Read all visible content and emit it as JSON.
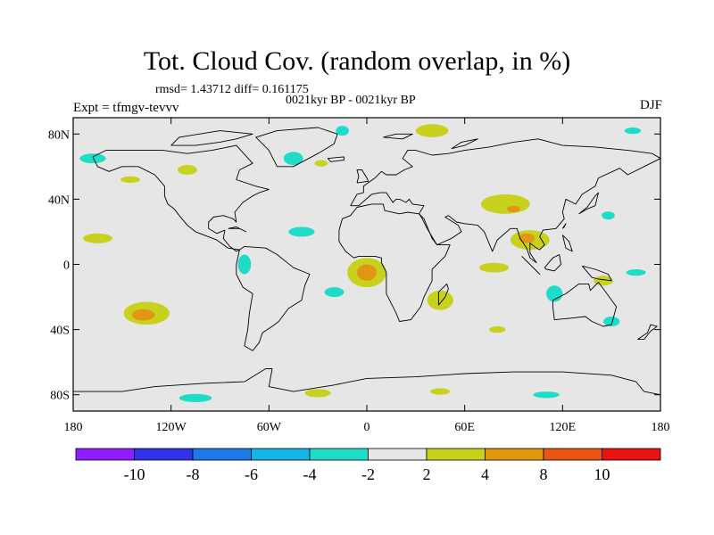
{
  "header": {
    "title": "Tot. Cloud Cov. (random overlap, in %)",
    "stats": "rmsd= 1.43712 diff= 0.161175",
    "period": "0021kyr BP - 0021kyr BP",
    "experiment": "Expt = tfmgv-tevvv",
    "season": "DJF"
  },
  "map": {
    "lon_range": [
      -180,
      180
    ],
    "lat_range": [
      -90,
      90
    ],
    "lat_ticks": [
      {
        "value": 80,
        "label": "80N"
      },
      {
        "value": 40,
        "label": "40N"
      },
      {
        "value": 0,
        "label": "0"
      },
      {
        "value": -40,
        "label": "40S"
      },
      {
        "value": -80,
        "label": "80S"
      }
    ],
    "lon_ticks": [
      {
        "value": -180,
        "label": "180"
      },
      {
        "value": -120,
        "label": "120W"
      },
      {
        "value": -60,
        "label": "60W"
      },
      {
        "value": 0,
        "label": "0"
      },
      {
        "value": 60,
        "label": "60E"
      },
      {
        "value": 120,
        "label": "120E"
      },
      {
        "value": 180,
        "label": "180"
      }
    ],
    "background_color": "#e6e6e6"
  },
  "colorbar": {
    "levels": [
      "-10",
      "-8",
      "-6",
      "-4",
      "-2",
      "2",
      "4",
      "8",
      "10"
    ],
    "colors": [
      "#8c1eff",
      "#3232e6",
      "#1e78e6",
      "#19b4e6",
      "#1edcc8",
      "#e6e6e6",
      "#c8d21e",
      "#e19614",
      "#e65514",
      "#e61414"
    ]
  },
  "field_patches": [
    {
      "lon": -135,
      "lat": -30,
      "rx": 14,
      "ry": 7,
      "color": "#c8d21e"
    },
    {
      "lon": -137,
      "lat": -31,
      "rx": 7,
      "ry": 3.5,
      "color": "#e19614"
    },
    {
      "lon": 0,
      "lat": -5,
      "rx": 12,
      "ry": 9,
      "color": "#c8d21e"
    },
    {
      "lon": 0,
      "lat": -5,
      "rx": 6,
      "ry": 5,
      "color": "#e19614"
    },
    {
      "lon": 85,
      "lat": 37,
      "rx": 15,
      "ry": 6,
      "color": "#c8d21e"
    },
    {
      "lon": 90,
      "lat": 34,
      "rx": 4,
      "ry": 2,
      "color": "#e19614"
    },
    {
      "lon": 100,
      "lat": 15,
      "rx": 12,
      "ry": 6,
      "color": "#c8d21e"
    },
    {
      "lon": 98,
      "lat": 16,
      "rx": 5,
      "ry": 3,
      "color": "#e19614"
    },
    {
      "lon": -165,
      "lat": 16,
      "rx": 9,
      "ry": 3,
      "color": "#c8d21e"
    },
    {
      "lon": -40,
      "lat": 20,
      "rx": 8,
      "ry": 3,
      "color": "#1edcc8"
    },
    {
      "lon": -75,
      "lat": 0,
      "rx": 4,
      "ry": 6,
      "color": "#1edcc8"
    },
    {
      "lon": -20,
      "lat": -17,
      "rx": 6,
      "ry": 3,
      "color": "#1edcc8"
    },
    {
      "lon": 45,
      "lat": -22,
      "rx": 8,
      "ry": 6,
      "color": "#c8d21e"
    },
    {
      "lon": 78,
      "lat": -2,
      "rx": 9,
      "ry": 3,
      "color": "#c8d21e"
    },
    {
      "lon": 115,
      "lat": -18,
      "rx": 5,
      "ry": 5,
      "color": "#1edcc8"
    },
    {
      "lon": 145,
      "lat": -10,
      "rx": 6,
      "ry": 3,
      "color": "#c8d21e"
    },
    {
      "lon": 165,
      "lat": -5,
      "rx": 6,
      "ry": 2,
      "color": "#1edcc8"
    },
    {
      "lon": 150,
      "lat": -35,
      "rx": 5,
      "ry": 3,
      "color": "#1edcc8"
    },
    {
      "lon": 40,
      "lat": 82,
      "rx": 10,
      "ry": 4,
      "color": "#c8d21e"
    },
    {
      "lon": -45,
      "lat": 65,
      "rx": 6,
      "ry": 4,
      "color": "#1edcc8"
    },
    {
      "lon": -168,
      "lat": 65,
      "rx": 8,
      "ry": 3,
      "color": "#1edcc8"
    },
    {
      "lon": -110,
      "lat": 58,
      "rx": 6,
      "ry": 3,
      "color": "#c8d21e"
    },
    {
      "lon": -15,
      "lat": 82,
      "rx": 4,
      "ry": 3,
      "color": "#1edcc8"
    },
    {
      "lon": -105,
      "lat": -82,
      "rx": 10,
      "ry": 2.5,
      "color": "#1edcc8"
    },
    {
      "lon": -30,
      "lat": -79,
      "rx": 8,
      "ry": 2.5,
      "color": "#c8d21e"
    },
    {
      "lon": 45,
      "lat": -78,
      "rx": 6,
      "ry": 2,
      "color": "#c8d21e"
    },
    {
      "lon": 110,
      "lat": -80,
      "rx": 8,
      "ry": 2,
      "color": "#1edcc8"
    },
    {
      "lon": 80,
      "lat": -40,
      "rx": 5,
      "ry": 2,
      "color": "#c8d21e"
    },
    {
      "lon": -145,
      "lat": 52,
      "rx": 6,
      "ry": 2,
      "color": "#c8d21e"
    },
    {
      "lon": 148,
      "lat": 30,
      "rx": 4,
      "ry": 2.5,
      "color": "#1edcc8"
    },
    {
      "lon": -28,
      "lat": 62,
      "rx": 4,
      "ry": 2,
      "color": "#c8d21e"
    },
    {
      "lon": 163,
      "lat": 82,
      "rx": 5,
      "ry": 2,
      "color": "#1edcc8"
    }
  ],
  "coastlines": [
    [
      [
        -168,
        66
      ],
      [
        -160,
        70
      ],
      [
        -140,
        70
      ],
      [
        -125,
        70
      ],
      [
        -110,
        68
      ],
      [
        -95,
        70
      ],
      [
        -80,
        73
      ],
      [
        -70,
        62
      ],
      [
        -78,
        58
      ],
      [
        -80,
        52
      ],
      [
        -68,
        48
      ],
      [
        -60,
        46
      ],
      [
        -66,
        44
      ],
      [
        -70,
        42
      ],
      [
        -76,
        38
      ],
      [
        -81,
        32
      ],
      [
        -80,
        26
      ],
      [
        -82,
        28
      ],
      [
        -88,
        30
      ],
      [
        -94,
        29
      ],
      [
        -97,
        26
      ],
      [
        -97,
        22
      ],
      [
        -92,
        19
      ],
      [
        -87,
        21
      ],
      [
        -88,
        16
      ],
      [
        -84,
        11
      ],
      [
        -80,
        8
      ],
      [
        -78,
        9
      ],
      [
        -85,
        10
      ],
      [
        -92,
        15
      ],
      [
        -105,
        20
      ],
      [
        -110,
        24
      ],
      [
        -115,
        30
      ],
      [
        -118,
        34
      ],
      [
        -122,
        37
      ],
      [
        -124,
        42
      ],
      [
        -124,
        48
      ],
      [
        -130,
        55
      ],
      [
        -140,
        60
      ],
      [
        -150,
        60
      ],
      [
        -158,
        57
      ],
      [
        -165,
        60
      ],
      [
        -168,
        66
      ]
    ],
    [
      [
        -55,
        60
      ],
      [
        -45,
        60
      ],
      [
        -30,
        68
      ],
      [
        -20,
        74
      ],
      [
        -18,
        80
      ],
      [
        -30,
        84
      ],
      [
        -55,
        82
      ],
      [
        -68,
        78
      ],
      [
        -60,
        70
      ],
      [
        -55,
        60
      ]
    ],
    [
      [
        -78,
        9
      ],
      [
        -75,
        11
      ],
      [
        -62,
        10
      ],
      [
        -55,
        6
      ],
      [
        -50,
        2
      ],
      [
        -45,
        -2
      ],
      [
        -35,
        -6
      ],
      [
        -38,
        -13
      ],
      [
        -40,
        -22
      ],
      [
        -48,
        -27
      ],
      [
        -54,
        -35
      ],
      [
        -58,
        -38
      ],
      [
        -64,
        -42
      ],
      [
        -66,
        -48
      ],
      [
        -70,
        -53
      ],
      [
        -75,
        -50
      ],
      [
        -73,
        -40
      ],
      [
        -72,
        -30
      ],
      [
        -70,
        -18
      ],
      [
        -76,
        -14
      ],
      [
        -80,
        -6
      ],
      [
        -80,
        0
      ],
      [
        -78,
        9
      ]
    ],
    [
      [
        -10,
        36
      ],
      [
        -6,
        43
      ],
      [
        -2,
        44
      ],
      [
        -2,
        48
      ],
      [
        5,
        53
      ],
      [
        9,
        57
      ],
      [
        12,
        55
      ],
      [
        18,
        55
      ],
      [
        23,
        58
      ],
      [
        28,
        60
      ],
      [
        22,
        65
      ],
      [
        25,
        70
      ],
      [
        30,
        70
      ],
      [
        40,
        67
      ],
      [
        50,
        68
      ],
      [
        60,
        70
      ],
      [
        75,
        72
      ],
      [
        90,
        75
      ],
      [
        105,
        77
      ],
      [
        120,
        73
      ],
      [
        140,
        72
      ],
      [
        160,
        70
      ],
      [
        175,
        68
      ],
      [
        180,
        65
      ],
      [
        170,
        60
      ],
      [
        160,
        55
      ],
      [
        155,
        59
      ],
      [
        142,
        53
      ],
      [
        140,
        48
      ],
      [
        132,
        43
      ],
      [
        128,
        37
      ],
      [
        122,
        40
      ],
      [
        120,
        32
      ],
      [
        121,
        28
      ],
      [
        116,
        22
      ],
      [
        108,
        21
      ],
      [
        106,
        17
      ],
      [
        109,
        12
      ],
      [
        106,
        9
      ],
      [
        104,
        10
      ],
      [
        100,
        13
      ],
      [
        100,
        7
      ],
      [
        104,
        1
      ],
      [
        100,
        4
      ],
      [
        98,
        10
      ],
      [
        94,
        16
      ],
      [
        92,
        22
      ],
      [
        88,
        22
      ],
      [
        80,
        15
      ],
      [
        77,
        8
      ],
      [
        72,
        20
      ],
      [
        68,
        24
      ],
      [
        60,
        25
      ],
      [
        55,
        26
      ],
      [
        50,
        30
      ],
      [
        48,
        29
      ],
      [
        56,
        24
      ],
      [
        58,
        20
      ],
      [
        52,
        16
      ],
      [
        43,
        12
      ],
      [
        40,
        16
      ],
      [
        35,
        28
      ],
      [
        32,
        31
      ],
      [
        35,
        36
      ],
      [
        28,
        37
      ],
      [
        26,
        40
      ],
      [
        24,
        38
      ],
      [
        20,
        40
      ],
      [
        18,
        40
      ],
      [
        16,
        38
      ],
      [
        12,
        44
      ],
      [
        8,
        44
      ],
      [
        3,
        43
      ],
      [
        -5,
        36
      ],
      [
        -10,
        36
      ]
    ],
    [
      [
        -17,
        21
      ],
      [
        -15,
        28
      ],
      [
        -10,
        30
      ],
      [
        -6,
        35
      ],
      [
        3,
        37
      ],
      [
        10,
        37
      ],
      [
        11,
        33
      ],
      [
        20,
        31
      ],
      [
        25,
        32
      ],
      [
        32,
        31
      ],
      [
        34,
        28
      ],
      [
        37,
        22
      ],
      [
        43,
        12
      ],
      [
        51,
        12
      ],
      [
        48,
        5
      ],
      [
        40,
        -3
      ],
      [
        40,
        -10
      ],
      [
        35,
        -20
      ],
      [
        33,
        -26
      ],
      [
        27,
        -34
      ],
      [
        20,
        -35
      ],
      [
        18,
        -30
      ],
      [
        12,
        -18
      ],
      [
        12,
        -5
      ],
      [
        9,
        1
      ],
      [
        9,
        4
      ],
      [
        5,
        5
      ],
      [
        -5,
        5
      ],
      [
        -8,
        4
      ],
      [
        -13,
        8
      ],
      [
        -17,
        14
      ],
      [
        -17,
        21
      ]
    ],
    [
      [
        114,
        -22
      ],
      [
        122,
        -18
      ],
      [
        130,
        -12
      ],
      [
        136,
        -12
      ],
      [
        137,
        -16
      ],
      [
        142,
        -11
      ],
      [
        145,
        -15
      ],
      [
        153,
        -26
      ],
      [
        150,
        -37
      ],
      [
        145,
        -38
      ],
      [
        138,
        -35
      ],
      [
        134,
        -32
      ],
      [
        125,
        -33
      ],
      [
        115,
        -34
      ],
      [
        114,
        -26
      ],
      [
        114,
        -22
      ]
    ],
    [
      [
        -6,
        50
      ],
      [
        -5,
        54
      ],
      [
        -6,
        58
      ],
      [
        -3,
        58
      ],
      [
        0,
        53
      ],
      [
        1,
        51
      ],
      [
        -6,
        50
      ]
    ],
    [
      [
        130,
        31
      ],
      [
        135,
        34
      ],
      [
        140,
        36
      ],
      [
        141,
        40
      ],
      [
        142,
        44
      ],
      [
        140,
        42
      ],
      [
        135,
        35
      ],
      [
        130,
        31
      ]
    ],
    [
      [
        44,
        -25
      ],
      [
        48,
        -20
      ],
      [
        50,
        -15
      ],
      [
        49,
        -12
      ],
      [
        44,
        -17
      ],
      [
        44,
        -25
      ]
    ],
    [
      [
        95,
        5
      ],
      [
        102,
        -2
      ],
      [
        106,
        -6
      ],
      [
        104,
        -4
      ],
      [
        98,
        2
      ],
      [
        95,
        5
      ]
    ],
    [
      [
        109,
        -2
      ],
      [
        114,
        4
      ],
      [
        118,
        6
      ],
      [
        119,
        0
      ],
      [
        115,
        -4
      ],
      [
        110,
        -3
      ],
      [
        109,
        -2
      ]
    ],
    [
      [
        132,
        -1
      ],
      [
        140,
        -3
      ],
      [
        148,
        -6
      ],
      [
        150,
        -10
      ],
      [
        142,
        -9
      ],
      [
        138,
        -8
      ],
      [
        132,
        -1
      ]
    ],
    [
      [
        -24,
        65
      ],
      [
        -14,
        66
      ],
      [
        -14,
        64
      ],
      [
        -22,
        63
      ],
      [
        -24,
        65
      ]
    ],
    [
      [
        166,
        -46
      ],
      [
        172,
        -42
      ],
      [
        174,
        -37
      ],
      [
        178,
        -38
      ],
      [
        174,
        -41
      ],
      [
        170,
        -46
      ],
      [
        166,
        -46
      ]
    ],
    [
      [
        -180,
        -78
      ],
      [
        -150,
        -78
      ],
      [
        -130,
        -75
      ],
      [
        -100,
        -73
      ],
      [
        -75,
        -72
      ],
      [
        -62,
        -64
      ],
      [
        -58,
        -64
      ],
      [
        -60,
        -75
      ],
      [
        -45,
        -78
      ],
      [
        -20,
        -74
      ],
      [
        0,
        -70
      ],
      [
        30,
        -69
      ],
      [
        60,
        -67
      ],
      [
        90,
        -66
      ],
      [
        120,
        -66
      ],
      [
        150,
        -68
      ],
      [
        165,
        -72
      ],
      [
        170,
        -78
      ],
      [
        180,
        -80
      ]
    ],
    [
      [
        -120,
        73
      ],
      [
        -105,
        73
      ],
      [
        -90,
        75
      ],
      [
        -80,
        77
      ],
      [
        -70,
        80
      ],
      [
        -90,
        82
      ],
      [
        -115,
        78
      ],
      [
        -120,
        73
      ]
    ],
    [
      [
        10,
        78
      ],
      [
        18,
        80
      ],
      [
        28,
        80
      ],
      [
        22,
        77
      ],
      [
        10,
        78
      ]
    ],
    [
      [
        52,
        71
      ],
      [
        58,
        75
      ],
      [
        68,
        77
      ],
      [
        60,
        73
      ],
      [
        52,
        71
      ]
    ],
    [
      [
        -85,
        22
      ],
      [
        -78,
        22
      ],
      [
        -74,
        20
      ],
      [
        -80,
        23
      ],
      [
        -85,
        22
      ]
    ],
    [
      [
        120,
        22
      ],
      [
        122,
        25
      ],
      [
        121,
        23
      ],
      [
        120,
        22
      ]
    ],
    [
      [
        120,
        18
      ],
      [
        124,
        14
      ],
      [
        126,
        8
      ],
      [
        122,
        10
      ],
      [
        120,
        18
      ]
    ]
  ]
}
